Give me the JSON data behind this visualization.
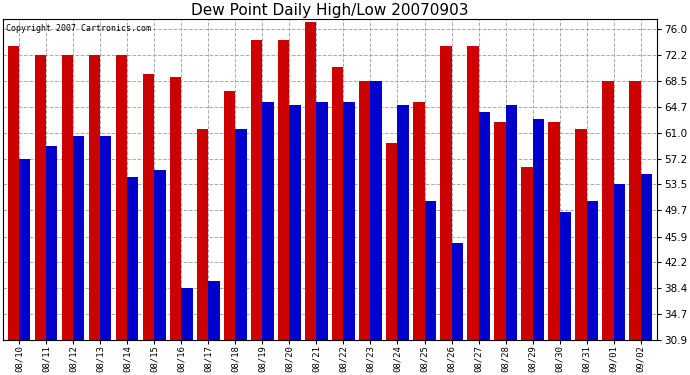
{
  "title": "Dew Point Daily High/Low 20070903",
  "copyright": "Copyright 2007 Cartronics.com",
  "dates": [
    "08/10",
    "08/11",
    "08/12",
    "08/13",
    "08/14",
    "08/15",
    "08/16",
    "08/17",
    "08/18",
    "08/19",
    "08/20",
    "08/21",
    "08/22",
    "08/23",
    "08/24",
    "08/25",
    "08/26",
    "08/27",
    "08/28",
    "08/29",
    "08/30",
    "08/31",
    "09/01",
    "09/02"
  ],
  "highs": [
    73.5,
    72.2,
    72.2,
    72.2,
    72.2,
    69.5,
    69.0,
    61.5,
    67.0,
    74.5,
    74.5,
    77.0,
    70.5,
    68.5,
    59.5,
    65.5,
    73.5,
    73.5,
    62.5,
    56.0,
    62.5,
    61.5,
    68.5,
    68.5
  ],
  "lows": [
    57.2,
    59.0,
    60.5,
    60.5,
    54.5,
    55.5,
    38.4,
    39.5,
    61.5,
    65.5,
    65.0,
    65.5,
    65.5,
    68.5,
    65.0,
    51.0,
    45.0,
    64.0,
    65.0,
    63.0,
    49.5,
    51.0,
    53.5,
    55.0
  ],
  "bar_color_high": "#cc0000",
  "bar_color_low": "#0000cc",
  "background_color": "#ffffff",
  "grid_color": "#aaaaaa",
  "yticks": [
    30.9,
    34.7,
    38.4,
    42.2,
    45.9,
    49.7,
    53.5,
    57.2,
    61.0,
    64.7,
    68.5,
    72.2,
    76.0
  ],
  "ymin": 30.9,
  "ymax": 77.5,
  "bar_width": 0.42
}
